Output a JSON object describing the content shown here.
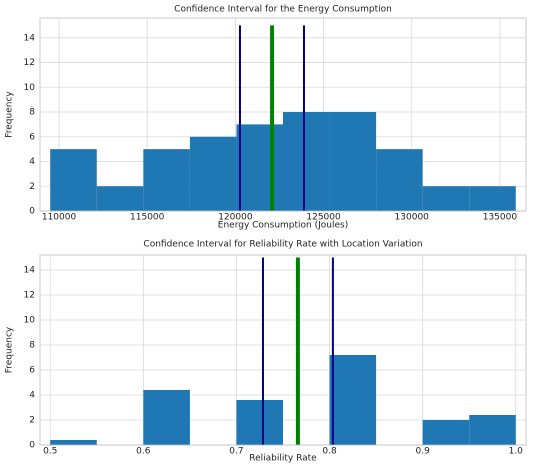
{
  "chart_data": [
    {
      "type": "histogram",
      "title": "Confidence Interval for the Energy Consumption",
      "x_label": "Energy Consumption (Joules)",
      "y_label": "Frequency",
      "bins": [
        109500,
        112140,
        114780,
        117420,
        120060,
        122700,
        125340,
        127980,
        130620,
        133260,
        135900
      ],
      "counts": [
        5,
        2,
        5,
        6,
        7,
        8,
        8,
        5,
        2,
        2
      ],
      "color": "#1f77b4",
      "vlines": [
        {
          "x": 120260,
          "color": "#00008b",
          "ymax": 15
        },
        {
          "x": 122080,
          "color": "#008000",
          "ymax": 15
        },
        {
          "x": 123890,
          "color": "#00008b",
          "ymax": 15
        }
      ],
      "xlim": [
        108920,
        136480
      ],
      "xticks": [
        110000,
        115000,
        120000,
        125000,
        130000,
        135000
      ],
      "ylim": [
        0,
        15.6
      ],
      "yticks": [
        0,
        2,
        4,
        6,
        8,
        10,
        12,
        14
      ],
      "grid": true
    },
    {
      "type": "histogram",
      "title": "Confidence Interval for Reliability Rate with Location Variation",
      "x_label": "Reliability Rate",
      "y_label": "Frequency",
      "bins": [
        0.5,
        0.55,
        0.6,
        0.65,
        0.7,
        0.75,
        0.8,
        0.85,
        0.9,
        0.95,
        1.0
      ],
      "counts": [
        0.4,
        0,
        4.4,
        0,
        3.6,
        0,
        7.2,
        0,
        2.0,
        2.4
      ],
      "color": "#1f77b4",
      "vlines": [
        {
          "x": 0.7285,
          "color": "#00008b",
          "ymax": 15
        },
        {
          "x": 0.766,
          "color": "#008000",
          "ymax": 15
        },
        {
          "x": 0.8036,
          "color": "#00008b",
          "ymax": 15
        }
      ],
      "xlim": [
        0.489,
        1.011
      ],
      "xticks": [
        0.5,
        0.6,
        0.7,
        0.8,
        0.9,
        {
          "value": 1,
          "label": "1.0"
        }
      ],
      "ylim": [
        0,
        15.2
      ],
      "yticks": [
        0,
        2,
        4,
        6,
        8,
        10,
        12,
        14
      ],
      "grid": true
    }
  ]
}
